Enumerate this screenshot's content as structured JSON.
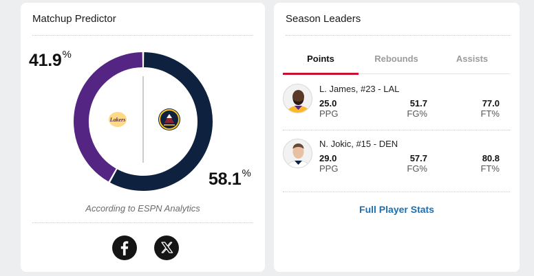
{
  "matchup": {
    "title": "Matchup Predictor",
    "away": {
      "team": "Lakers",
      "pct_value": "41.9",
      "pct_unit": "%",
      "probability": 0.419,
      "color": "#552583",
      "logo_text": "Lakers"
    },
    "home": {
      "team": "Nuggets",
      "pct_value": "58.1",
      "pct_unit": "%",
      "probability": 0.581,
      "color": "#0e2240"
    },
    "note": "According to ESPN Analytics",
    "share": [
      {
        "name": "facebook",
        "icon": "facebook-icon"
      },
      {
        "name": "x",
        "icon": "x-icon"
      }
    ]
  },
  "leaders": {
    "title": "Season Leaders",
    "tabs": [
      {
        "label": "Points",
        "active": true
      },
      {
        "label": "Rebounds",
        "active": false
      },
      {
        "label": "Assists",
        "active": false
      }
    ],
    "players": [
      {
        "name": "L. James, #23 - LAL",
        "stats": [
          {
            "value": "25.0",
            "label": "PPG"
          },
          {
            "value": "51.7",
            "label": "FG%"
          },
          {
            "value": "77.0",
            "label": "FT%"
          }
        ]
      },
      {
        "name": "N. Jokic, #15 - DEN",
        "stats": [
          {
            "value": "29.0",
            "label": "PPG"
          },
          {
            "value": "57.7",
            "label": "FG%"
          },
          {
            "value": "80.8",
            "label": "FT%"
          }
        ]
      }
    ],
    "link_label": "Full Player Stats",
    "accent_color": "#c8102e",
    "link_color": "#1a6fb0"
  }
}
